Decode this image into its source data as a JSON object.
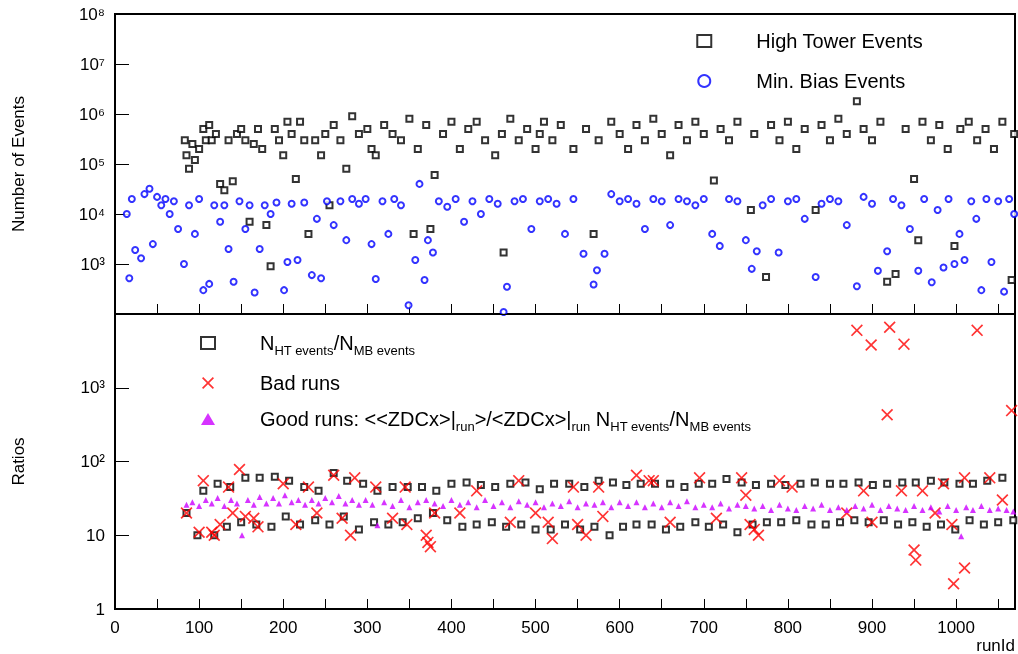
{
  "chart_data": [
    {
      "type": "scatter",
      "ylabel": "Number of Events",
      "log": "y",
      "grid": false,
      "legend": "top right",
      "tick_labels": "y",
      "xlim": [
        0,
        1070
      ],
      "xticks": [
        0,
        {
          "value": 50,
          "label": null
        },
        100,
        {
          "value": 150,
          "label": null
        },
        200,
        {
          "value": 250,
          "label": null
        },
        300,
        {
          "value": 350,
          "label": null
        },
        400,
        {
          "value": 450,
          "label": null
        },
        500,
        {
          "value": 550,
          "label": null
        },
        600,
        {
          "value": 650,
          "label": null
        },
        700,
        {
          "value": 750,
          "label": null
        },
        800,
        {
          "value": 850,
          "label": null
        },
        900,
        {
          "value": 950,
          "label": null
        },
        1000,
        {
          "value": 1050,
          "label": null
        }
      ],
      "ylim": [
        100,
        100000000
      ],
      "yticks": [
        {
          "value": 100,
          "label": null
        },
        {
          "value": 1000,
          "label": "10³"
        },
        {
          "value": 10000,
          "label": "10⁴"
        },
        {
          "value": 100000,
          "label": "10⁵"
        },
        {
          "value": 1000000,
          "label": "10⁶"
        },
        {
          "value": 10000000,
          "label": "10⁷"
        },
        {
          "value": 100000000,
          "label": "10⁸"
        }
      ],
      "series": [
        {
          "name": "High Tower Events",
          "color": "#000000",
          "marker": "square",
          "x": [
            83,
            85,
            88,
            92,
            95,
            100,
            105,
            108,
            112,
            115,
            120,
            125,
            130,
            135,
            140,
            145,
            150,
            155,
            160,
            165,
            170,
            175,
            180,
            185,
            190,
            195,
            200,
            205,
            210,
            215,
            220,
            225,
            230,
            238,
            245,
            250,
            255,
            260,
            268,
            275,
            282,
            290,
            300,
            305,
            310,
            320,
            330,
            340,
            350,
            355,
            360,
            370,
            375,
            380,
            390,
            400,
            410,
            420,
            430,
            440,
            452,
            460,
            462,
            470,
            480,
            490,
            500,
            505,
            510,
            520,
            530,
            545,
            560,
            569,
            575,
            590,
            600,
            610,
            620,
            630,
            640,
            650,
            660,
            670,
            680,
            690,
            700,
            712,
            720,
            730,
            740,
            756,
            760,
            774,
            780,
            790,
            800,
            810,
            820,
            833,
            840,
            850,
            860,
            870,
            882,
            890,
            900,
            910,
            918,
            928,
            940,
            950,
            955,
            960,
            970,
            980,
            990,
            998,
            1005,
            1015,
            1025,
            1035,
            1045,
            1055,
            1066,
            1069
          ],
          "values": [
            300000,
            150000,
            80000,
            250000,
            120000,
            200000,
            500000,
            300000,
            600000,
            300000,
            400000,
            40000,
            30000,
            300000,
            45000,
            400000,
            500000,
            300000,
            7000,
            250000,
            500000,
            200000,
            6000,
            900,
            500000,
            300000,
            150000,
            700000,
            400000,
            50000,
            700000,
            300000,
            4000,
            300000,
            150000,
            400000,
            15000,
            600000,
            300000,
            80000,
            900000,
            400000,
            500000,
            200000,
            150000,
            600000,
            400000,
            300000,
            800000,
            4000,
            200000,
            600000,
            5000,
            60000,
            400000,
            700000,
            200000,
            500000,
            700000,
            300000,
            150000,
            400000,
            1700,
            800000,
            300000,
            500000,
            200000,
            400000,
            700000,
            300000,
            600000,
            200000,
            500000,
            4000,
            300000,
            700000,
            400000,
            200000,
            600000,
            300000,
            800000,
            400000,
            150000,
            600000,
            300000,
            700000,
            400000,
            47000,
            500000,
            300000,
            700000,
            12000,
            400000,
            550,
            600000,
            300000,
            700000,
            200000,
            500000,
            12000,
            600000,
            300000,
            800000,
            400000,
            1800000,
            500000,
            300000,
            700000,
            440,
            630,
            500000,
            50000,
            3000,
            700000,
            300000,
            600000,
            200000,
            2300,
            500000,
            700000,
            300000,
            500000,
            200000,
            700000,
            480,
            400000
          ]
        },
        {
          "name": "Min. Bias Events",
          "color": "#0000ff",
          "marker": "circle",
          "x": [
            14,
            17,
            20,
            24,
            31,
            35,
            41,
            45,
            50,
            55,
            60,
            65,
            70,
            75,
            82,
            88,
            95,
            100,
            105,
            112,
            118,
            125,
            130,
            135,
            141,
            148,
            155,
            160,
            166,
            172,
            178,
            185,
            192,
            201,
            205,
            210,
            217,
            225,
            234,
            240,
            245,
            252,
            260,
            268,
            275,
            282,
            290,
            298,
            305,
            310,
            318,
            325,
            332,
            340,
            349,
            357,
            362,
            368,
            372,
            378,
            385,
            395,
            405,
            415,
            425,
            435,
            445,
            455,
            462,
            466,
            475,
            485,
            495,
            505,
            515,
            525,
            535,
            545,
            557,
            569,
            573,
            582,
            590,
            600,
            610,
            620,
            630,
            640,
            650,
            660,
            670,
            680,
            690,
            700,
            710,
            719,
            730,
            740,
            750,
            757,
            763,
            770,
            780,
            789,
            800,
            810,
            820,
            833,
            840,
            850,
            860,
            870,
            882,
            890,
            900,
            907,
            918,
            925,
            935,
            945,
            955,
            962,
            971,
            978,
            985,
            991,
            998,
            1004,
            1010,
            1018,
            1024,
            1030,
            1036,
            1042,
            1050,
            1057,
            1063,
            1069
          ],
          "values": [
            10000,
            520,
            20000,
            1900,
            1300,
            25000,
            32000,
            2500,
            22000,
            15000,
            20000,
            10000,
            18000,
            5000,
            1000,
            15000,
            4000,
            20000,
            300,
            400,
            15000,
            7000,
            15000,
            2000,
            440,
            18000,
            5000,
            15000,
            270,
            2000,
            15000,
            10000,
            17000,
            300,
            1100,
            16000,
            1200,
            17000,
            600,
            8000,
            520,
            18000,
            6000,
            18000,
            3000,
            20000,
            16000,
            20000,
            2500,
            500,
            18000,
            4000,
            20000,
            15000,
            150,
            1200,
            40000,
            480,
            3000,
            1700,
            18000,
            14000,
            20000,
            7000,
            18000,
            10000,
            20000,
            16000,
            110,
            350,
            18000,
            20000,
            5000,
            18000,
            20000,
            16000,
            4000,
            20000,
            1600,
            390,
            750,
            1600,
            25000,
            18000,
            20000,
            16000,
            5000,
            20000,
            18000,
            6000,
            20000,
            18000,
            15000,
            20000,
            4000,
            2300,
            20000,
            18000,
            3000,
            800,
            1800,
            15000,
            20000,
            1700,
            18000,
            20000,
            8000,
            550,
            16000,
            20000,
            18000,
            6000,
            360,
            22000,
            16000,
            730,
            1800,
            20000,
            15000,
            5000,
            730,
            20000,
            430,
            12000,
            850,
            20000,
            1000,
            4000,
            1200,
            18000,
            8000,
            300,
            20000,
            1100,
            18000,
            280,
            20000,
            10000
          ]
        }
      ]
    },
    {
      "type": "scatter",
      "ylabel": "Ratios",
      "xlabel": "runId",
      "log": "y",
      "grid": false,
      "legend": "top left",
      "xlim": [
        0,
        1070
      ],
      "xticks": [
        0,
        {
          "value": 50,
          "label": null
        },
        100,
        {
          "value": 150,
          "label": null
        },
        200,
        {
          "value": 250,
          "label": null
        },
        300,
        {
          "value": 350,
          "label": null
        },
        400,
        {
          "value": 450,
          "label": null
        },
        500,
        {
          "value": 550,
          "label": null
        },
        600,
        {
          "value": 650,
          "label": null
        },
        700,
        {
          "value": 750,
          "label": null
        },
        800,
        {
          "value": 850,
          "label": null
        },
        900,
        {
          "value": 950,
          "label": null
        },
        1000,
        {
          "value": 1050,
          "label": null
        }
      ],
      "ylim": [
        1,
        10000
      ],
      "yticks": [
        1,
        10,
        {
          "value": 100,
          "label": "10²"
        },
        {
          "value": 1000,
          "label": "10³"
        }
      ],
      "series": [
        {
          "name": "N$_{HT events}$/N$_{MB events}$",
          "color": "#000000",
          "marker": "square",
          "x": [
            85,
            98,
            105,
            118,
            122,
            133,
            137,
            150,
            155,
            168,
            172,
            186,
            190,
            203,
            207,
            220,
            225,
            238,
            242,
            255,
            260,
            272,
            276,
            290,
            295,
            308,
            312,
            325,
            330,
            342,
            348,
            360,
            365,
            378,
            382,
            395,
            400,
            413,
            418,
            430,
            435,
            448,
            452,
            465,
            470,
            483,
            488,
            500,
            505,
            518,
            522,
            535,
            540,
            553,
            558,
            570,
            575,
            588,
            592,
            604,
            608,
            620,
            625,
            638,
            642,
            655,
            660,
            672,
            677,
            690,
            694,
            706,
            710,
            723,
            727,
            740,
            745,
            758,
            762,
            775,
            780,
            792,
            797,
            810,
            815,
            828,
            832,
            845,
            850,
            862,
            866,
            879,
            884,
            896,
            901,
            914,
            918,
            931,
            936,
            948,
            952,
            965,
            970,
            982,
            986,
            999,
            1004,
            1016,
            1020,
            1033,
            1037,
            1050,
            1055,
            1068
          ],
          "values": [
            20,
            10,
            40,
            10,
            50,
            13,
            45,
            15,
            60,
            14,
            60,
            13,
            62,
            18,
            55,
            14,
            45,
            16,
            40,
            14,
            70,
            18,
            55,
            12,
            50,
            15,
            40,
            14,
            45,
            15,
            45,
            17,
            45,
            20,
            40,
            16,
            50,
            13,
            52,
            14,
            48,
            15,
            45,
            13,
            50,
            14,
            52,
            12,
            42,
            12,
            50,
            14,
            50,
            12,
            45,
            13,
            55,
            10,
            52,
            13,
            48,
            14,
            50,
            14,
            50,
            12,
            50,
            13,
            45,
            15,
            50,
            13,
            50,
            14,
            58,
            11,
            52,
            14,
            48,
            15,
            50,
            15,
            48,
            16,
            50,
            14,
            52,
            14,
            50,
            15,
            50,
            16,
            52,
            15,
            48,
            16,
            50,
            14,
            52,
            15,
            52,
            13,
            55,
            14,
            52,
            12,
            50,
            16,
            50,
            14,
            55,
            15,
            60,
            16
          ]
        },
        {
          "name": "Bad runs",
          "color": "#ff0000",
          "marker": "cross",
          "x": [
            85,
            100,
            105,
            115,
            118,
            125,
            135,
            140,
            148,
            155,
            165,
            170,
            200,
            215,
            230,
            240,
            260,
            270,
            280,
            285,
            310,
            330,
            345,
            347,
            370,
            372,
            375,
            380,
            410,
            430,
            470,
            480,
            500,
            515,
            520,
            545,
            550,
            560,
            575,
            580,
            620,
            635,
            640,
            660,
            695,
            715,
            745,
            750,
            755,
            760,
            765,
            790,
            805,
            870,
            882,
            890,
            899,
            900,
            918,
            921,
            938,
            935,
            950,
            952,
            960,
            975,
            985,
            997,
            995,
            1010,
            1010,
            1025,
            1040,
            1055,
            1066
          ],
          "values": [
            20,
            11,
            55,
            11,
            10,
            14,
            45,
            20,
            78,
            18,
            17,
            13,
            50,
            14,
            45,
            20,
            65,
            17,
            10,
            60,
            45,
            17,
            45,
            14,
            10,
            8,
            7,
            20,
            20,
            40,
            15,
            55,
            20,
            15,
            9,
            45,
            14,
            10,
            45,
            18,
            65,
            55,
            55,
            15,
            60,
            17,
            60,
            35,
            14,
            12,
            10,
            55,
            45,
            20,
            6000,
            40,
            3800,
            15,
            430,
            6600,
            3900,
            40,
            6.3,
            4.6,
            40,
            20,
            50,
            2.2,
            14,
            3.6,
            60,
            6000,
            60,
            30,
            490
          ]
        },
        {
          "name": "Good runs: <<ZDCx>|$_{run}$>/<ZDCx>|$_{run}$ N$_{HT events}$/N$_{MB events}$",
          "color": "#cc00ff",
          "marker": "triangle",
          "x": [
            85,
            92,
            100,
            108,
            115,
            122,
            130,
            138,
            145,
            151,
            158,
            165,
            172,
            180,
            188,
            195,
            202,
            210,
            218,
            226,
            234,
            242,
            250,
            258,
            266,
            274,
            282,
            290,
            298,
            306,
            312,
            320,
            330,
            340,
            350,
            360,
            370,
            380,
            390,
            400,
            410,
            420,
            430,
            440,
            450,
            460,
            470,
            480,
            490,
            500,
            510,
            520,
            530,
            540,
            550,
            560,
            570,
            580,
            590,
            600,
            610,
            620,
            630,
            640,
            650,
            660,
            670,
            680,
            690,
            700,
            710,
            720,
            730,
            740,
            750,
            760,
            770,
            780,
            790,
            800,
            810,
            820,
            830,
            840,
            850,
            860,
            870,
            880,
            890,
            900,
            910,
            920,
            930,
            940,
            950,
            960,
            970,
            980,
            990,
            1000,
            1006,
            1012,
            1020,
            1030,
            1040,
            1050,
            1060,
            1068
          ],
          "values": [
            26,
            28,
            25,
            30,
            27,
            32,
            25,
            30,
            27,
            10,
            30,
            26,
            33,
            27,
            32,
            27,
            35,
            28,
            30,
            26,
            30,
            27,
            32,
            28,
            34,
            27,
            30,
            26,
            30,
            26,
            13.7,
            28,
            25,
            30,
            24,
            28,
            30,
            27,
            25,
            30,
            26,
            28,
            24,
            30,
            25,
            28,
            24,
            29,
            26,
            28,
            24,
            27,
            25,
            29,
            24,
            27,
            26,
            28,
            24,
            28,
            25,
            28,
            24,
            27,
            24,
            28,
            25,
            29,
            24,
            26,
            24,
            27,
            23,
            26,
            25,
            23,
            25,
            22,
            26,
            23,
            22,
            25,
            23,
            26,
            22,
            24,
            22,
            25,
            23,
            26,
            22,
            25,
            23,
            22,
            25,
            22,
            24,
            21,
            25,
            22,
            9.7,
            24,
            22,
            25,
            22,
            23,
            22,
            21
          ]
        }
      ]
    }
  ]
}
